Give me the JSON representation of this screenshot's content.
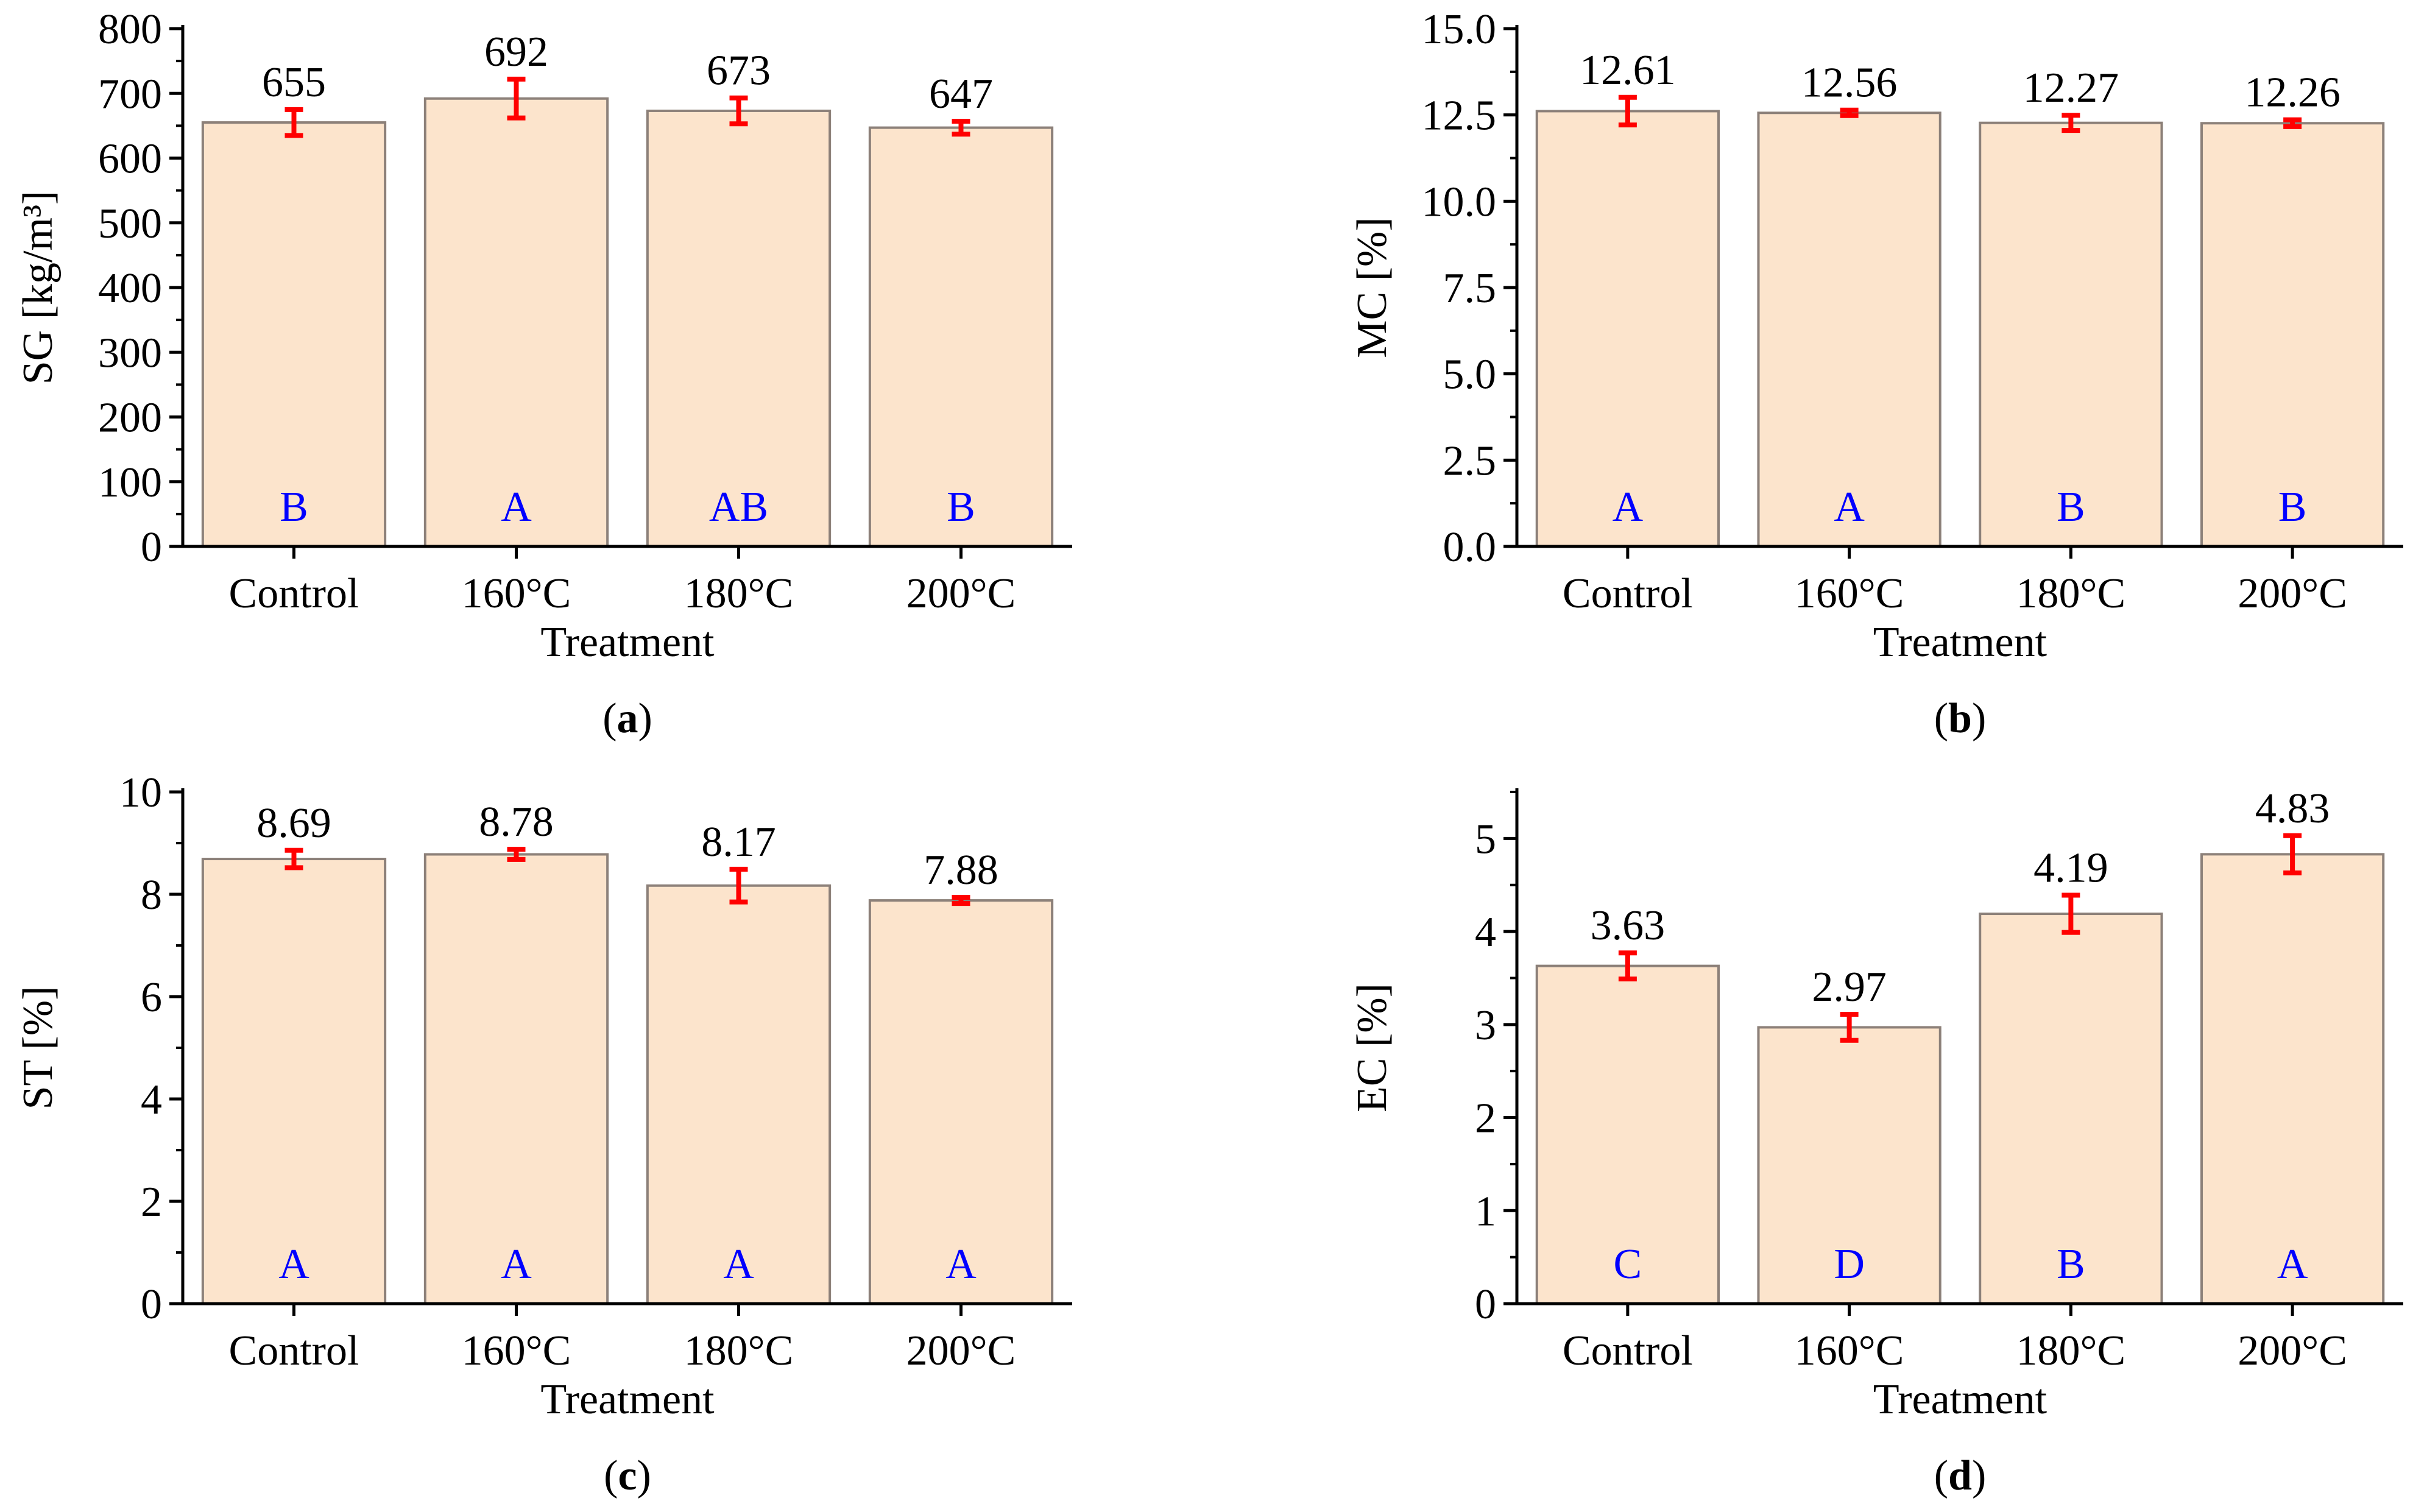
{
  "colors": {
    "bar_fill": "#FCE4CC",
    "bar_stroke": "#8C8079",
    "error_bar": "#FF0000",
    "group_letter": "#0000FF",
    "axis": "#000000"
  },
  "chart_data": [
    {
      "type": "bar",
      "panel_label": "a",
      "xlabel": "Treatment",
      "ylabel": "SG [kg/m³]",
      "ylim": [
        0,
        800
      ],
      "yticks": [
        0,
        100,
        200,
        300,
        400,
        500,
        600,
        700,
        800
      ],
      "ytick_labels": [
        "0",
        "100",
        "200",
        "300",
        "400",
        "500",
        "600",
        "700",
        "800"
      ],
      "minor_step": 50,
      "categories": [
        "Control",
        "160°C",
        "180°C",
        "200°C"
      ],
      "values": [
        655,
        692,
        673,
        647
      ],
      "value_labels": [
        "655",
        "692",
        "673",
        "647"
      ],
      "errors": [
        20,
        30,
        20,
        10
      ],
      "group_letters": [
        "B",
        "A",
        "AB",
        "B"
      ]
    },
    {
      "type": "bar",
      "panel_label": "b",
      "xlabel": "Treatment",
      "ylabel": "MC [%]",
      "ylim": [
        0,
        15
      ],
      "yticks": [
        0,
        2.5,
        5,
        7.5,
        10,
        12.5,
        15
      ],
      "ytick_labels": [
        "0.0",
        "2.5",
        "5.0",
        "7.5",
        "10.0",
        "12.5",
        "15.0"
      ],
      "minor_step": 1.25,
      "categories": [
        "Control",
        "160°C",
        "180°C",
        "200°C"
      ],
      "values": [
        12.61,
        12.56,
        12.27,
        12.26
      ],
      "value_labels": [
        "12.61",
        "12.56",
        "12.27",
        "12.26"
      ],
      "errors": [
        0.4,
        0.08,
        0.22,
        0.1
      ],
      "group_letters": [
        "A",
        "A",
        "B",
        "B"
      ]
    },
    {
      "type": "bar",
      "panel_label": "c",
      "xlabel": "Treatment",
      "ylabel": "ST [%]",
      "ylim": [
        0,
        10
      ],
      "yticks": [
        0,
        2,
        4,
        6,
        8,
        10
      ],
      "ytick_labels": [
        "0",
        "2",
        "4",
        "6",
        "8",
        "10"
      ],
      "minor_step": 1,
      "categories": [
        "Control",
        "160°C",
        "180°C",
        "200°C"
      ],
      "values": [
        8.69,
        8.78,
        8.17,
        7.88
      ],
      "value_labels": [
        "8.69",
        "8.78",
        "8.17",
        "7.88"
      ],
      "errors": [
        0.17,
        0.1,
        0.32,
        0.06
      ],
      "group_letters": [
        "A",
        "A",
        "A",
        "A"
      ]
    },
    {
      "type": "bar",
      "panel_label": "d",
      "xlabel": "Treatment",
      "ylabel": "EC [%]",
      "ylim": [
        0,
        5.5
      ],
      "yticks": [
        0,
        1,
        2,
        3,
        4,
        5
      ],
      "ytick_labels": [
        "0",
        "1",
        "2",
        "3",
        "4",
        "5"
      ],
      "minor_step": 0.5,
      "categories": [
        "Control",
        "160°C",
        "180°C",
        "200°C"
      ],
      "values": [
        3.63,
        2.97,
        4.19,
        4.83
      ],
      "value_labels": [
        "3.63",
        "2.97",
        "4.19",
        "4.83"
      ],
      "errors": [
        0.14,
        0.14,
        0.2,
        0.2
      ],
      "group_letters": [
        "C",
        "D",
        "B",
        "A"
      ]
    }
  ]
}
